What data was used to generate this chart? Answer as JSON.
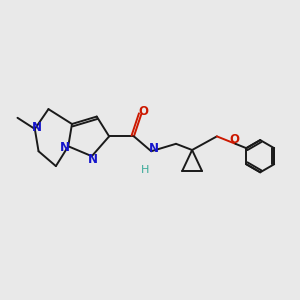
{
  "background_color": "#e9e9e9",
  "bond_color": "#1a1a1a",
  "N_color": "#1414cc",
  "O_color": "#cc1800",
  "H_color": "#3aaa99",
  "figsize": [
    3.0,
    3.0
  ],
  "dpi": 100,
  "xlim": [
    0,
    12
  ],
  "ylim": [
    0,
    10
  ]
}
